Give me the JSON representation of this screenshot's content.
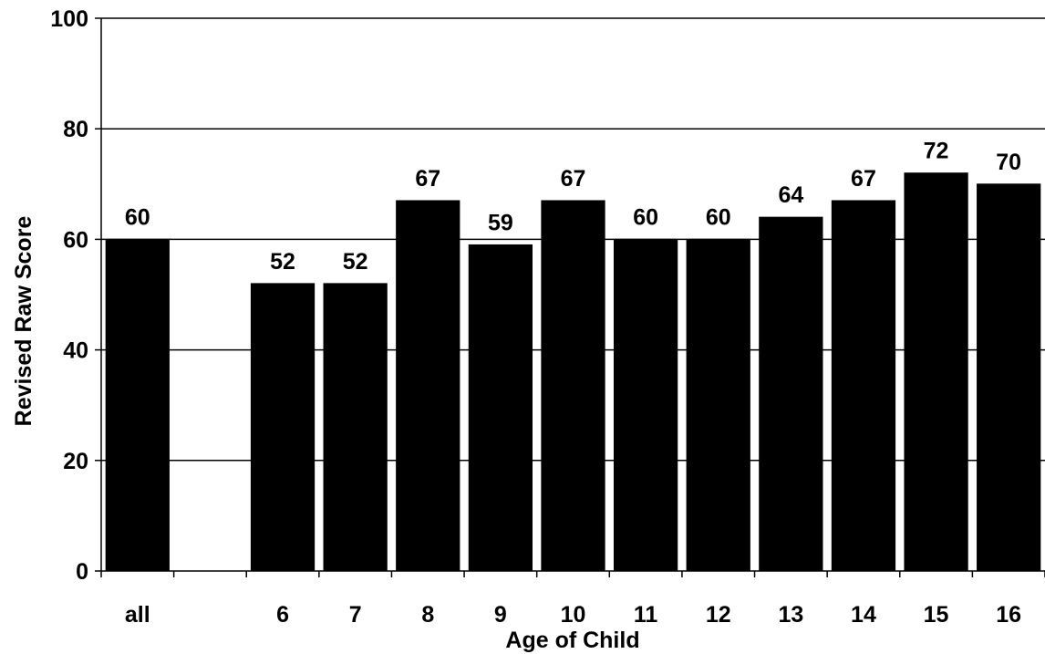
{
  "chart_data": {
    "type": "bar",
    "categories": [
      "all",
      "",
      "6",
      "7",
      "8",
      "9",
      "10",
      "11",
      "12",
      "13",
      "14",
      "15",
      "16"
    ],
    "values": [
      60,
      null,
      52,
      52,
      67,
      59,
      67,
      60,
      60,
      64,
      67,
      72,
      70
    ],
    "data_labels": [
      "60",
      "",
      "52",
      "52",
      "67",
      "59",
      "67",
      "60",
      "60",
      "64",
      "67",
      "72",
      "70"
    ],
    "title": "",
    "xlabel": "Age of Child",
    "ylabel": "Revised Raw Score",
    "ylim": [
      0,
      100
    ],
    "yticks": [
      0,
      20,
      40,
      60,
      80,
      100
    ],
    "ytick_labels": [
      "0",
      "20",
      "40",
      "60",
      "80",
      "100"
    ],
    "grid": true,
    "bar_color": "#000000"
  }
}
